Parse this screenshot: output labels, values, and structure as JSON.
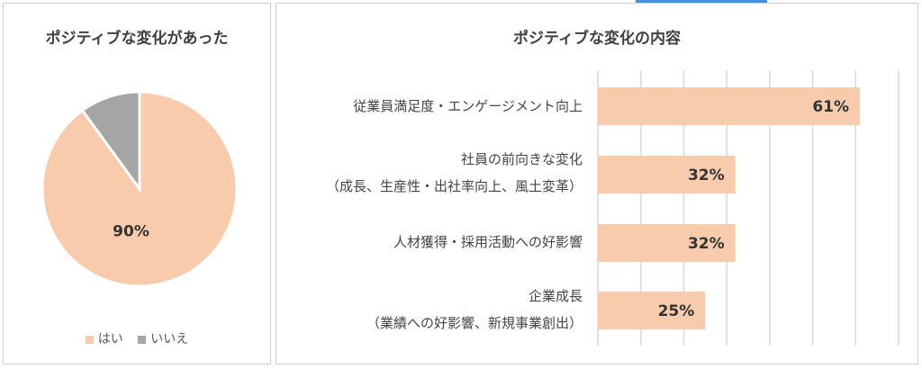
{
  "chart_data": [
    {
      "type": "pie",
      "title": "ポジティブな変化があった",
      "slices": [
        {
          "label": "はい",
          "value": 90,
          "color": "#f8cbad"
        },
        {
          "label": "いいえ",
          "value": 10,
          "color": "#a5a5a5"
        }
      ],
      "data_labels": [
        "90%",
        ""
      ],
      "legend_position": "bottom"
    },
    {
      "type": "bar",
      "orientation": "horizontal",
      "title": "ポジティブな変化の内容",
      "categories": [
        {
          "line1": "従業員満足度・エンゲージメント向上",
          "line2": ""
        },
        {
          "line1": "社員の前向きな変化",
          "line2": "（成長、生産性・出社率向上、風土変革）"
        },
        {
          "line1": "人材獲得・採用活動への好影響",
          "line2": ""
        },
        {
          "line1": "企業成長",
          "line2": "（業績への好影響、新規事業創出）"
        }
      ],
      "values": [
        61,
        32,
        32,
        25
      ],
      "data_labels": [
        "61%",
        "32%",
        "32%",
        "25%"
      ],
      "xlim": [
        0,
        70
      ],
      "grid": true,
      "bar_color": "#f8cbad"
    }
  ]
}
